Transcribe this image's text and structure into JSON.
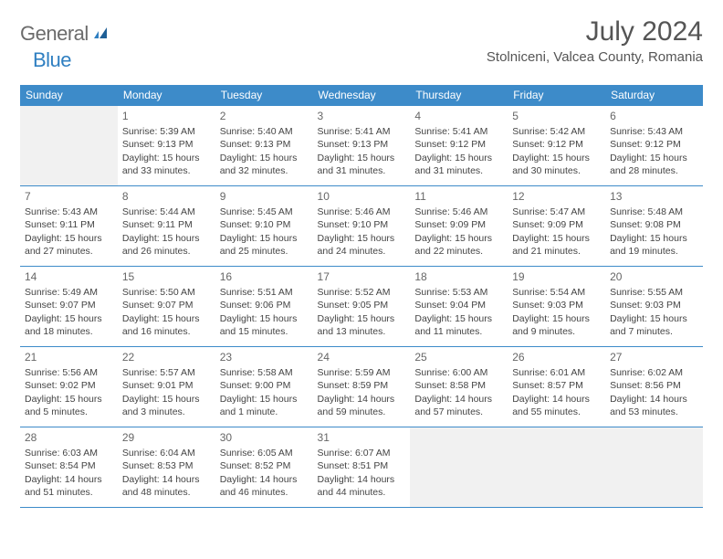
{
  "logo": {
    "text1": "General",
    "text2": "Blue"
  },
  "title": "July 2024",
  "location": "Stolniceni, Valcea County, Romania",
  "colors": {
    "header_bg": "#3d8bc9",
    "header_text": "#ffffff",
    "border": "#3d8bc9",
    "empty_bg": "#f1f1f1",
    "logo_gray": "#6b6b6b",
    "logo_blue": "#2f7fc1"
  },
  "weekdays": [
    "Sunday",
    "Monday",
    "Tuesday",
    "Wednesday",
    "Thursday",
    "Friday",
    "Saturday"
  ],
  "weeks": [
    [
      null,
      {
        "n": "1",
        "sr": "5:39 AM",
        "ss": "9:13 PM",
        "dl": "15 hours and 33 minutes."
      },
      {
        "n": "2",
        "sr": "5:40 AM",
        "ss": "9:13 PM",
        "dl": "15 hours and 32 minutes."
      },
      {
        "n": "3",
        "sr": "5:41 AM",
        "ss": "9:13 PM",
        "dl": "15 hours and 31 minutes."
      },
      {
        "n": "4",
        "sr": "5:41 AM",
        "ss": "9:12 PM",
        "dl": "15 hours and 31 minutes."
      },
      {
        "n": "5",
        "sr": "5:42 AM",
        "ss": "9:12 PM",
        "dl": "15 hours and 30 minutes."
      },
      {
        "n": "6",
        "sr": "5:43 AM",
        "ss": "9:12 PM",
        "dl": "15 hours and 28 minutes."
      }
    ],
    [
      {
        "n": "7",
        "sr": "5:43 AM",
        "ss": "9:11 PM",
        "dl": "15 hours and 27 minutes."
      },
      {
        "n": "8",
        "sr": "5:44 AM",
        "ss": "9:11 PM",
        "dl": "15 hours and 26 minutes."
      },
      {
        "n": "9",
        "sr": "5:45 AM",
        "ss": "9:10 PM",
        "dl": "15 hours and 25 minutes."
      },
      {
        "n": "10",
        "sr": "5:46 AM",
        "ss": "9:10 PM",
        "dl": "15 hours and 24 minutes."
      },
      {
        "n": "11",
        "sr": "5:46 AM",
        "ss": "9:09 PM",
        "dl": "15 hours and 22 minutes."
      },
      {
        "n": "12",
        "sr": "5:47 AM",
        "ss": "9:09 PM",
        "dl": "15 hours and 21 minutes."
      },
      {
        "n": "13",
        "sr": "5:48 AM",
        "ss": "9:08 PM",
        "dl": "15 hours and 19 minutes."
      }
    ],
    [
      {
        "n": "14",
        "sr": "5:49 AM",
        "ss": "9:07 PM",
        "dl": "15 hours and 18 minutes."
      },
      {
        "n": "15",
        "sr": "5:50 AM",
        "ss": "9:07 PM",
        "dl": "15 hours and 16 minutes."
      },
      {
        "n": "16",
        "sr": "5:51 AM",
        "ss": "9:06 PM",
        "dl": "15 hours and 15 minutes."
      },
      {
        "n": "17",
        "sr": "5:52 AM",
        "ss": "9:05 PM",
        "dl": "15 hours and 13 minutes."
      },
      {
        "n": "18",
        "sr": "5:53 AM",
        "ss": "9:04 PM",
        "dl": "15 hours and 11 minutes."
      },
      {
        "n": "19",
        "sr": "5:54 AM",
        "ss": "9:03 PM",
        "dl": "15 hours and 9 minutes."
      },
      {
        "n": "20",
        "sr": "5:55 AM",
        "ss": "9:03 PM",
        "dl": "15 hours and 7 minutes."
      }
    ],
    [
      {
        "n": "21",
        "sr": "5:56 AM",
        "ss": "9:02 PM",
        "dl": "15 hours and 5 minutes."
      },
      {
        "n": "22",
        "sr": "5:57 AM",
        "ss": "9:01 PM",
        "dl": "15 hours and 3 minutes."
      },
      {
        "n": "23",
        "sr": "5:58 AM",
        "ss": "9:00 PM",
        "dl": "15 hours and 1 minute."
      },
      {
        "n": "24",
        "sr": "5:59 AM",
        "ss": "8:59 PM",
        "dl": "14 hours and 59 minutes."
      },
      {
        "n": "25",
        "sr": "6:00 AM",
        "ss": "8:58 PM",
        "dl": "14 hours and 57 minutes."
      },
      {
        "n": "26",
        "sr": "6:01 AM",
        "ss": "8:57 PM",
        "dl": "14 hours and 55 minutes."
      },
      {
        "n": "27",
        "sr": "6:02 AM",
        "ss": "8:56 PM",
        "dl": "14 hours and 53 minutes."
      }
    ],
    [
      {
        "n": "28",
        "sr": "6:03 AM",
        "ss": "8:54 PM",
        "dl": "14 hours and 51 minutes."
      },
      {
        "n": "29",
        "sr": "6:04 AM",
        "ss": "8:53 PM",
        "dl": "14 hours and 48 minutes."
      },
      {
        "n": "30",
        "sr": "6:05 AM",
        "ss": "8:52 PM",
        "dl": "14 hours and 46 minutes."
      },
      {
        "n": "31",
        "sr": "6:07 AM",
        "ss": "8:51 PM",
        "dl": "14 hours and 44 minutes."
      },
      null,
      null,
      null
    ]
  ],
  "labels": {
    "sunrise": "Sunrise:",
    "sunset": "Sunset:",
    "daylight": "Daylight:"
  }
}
